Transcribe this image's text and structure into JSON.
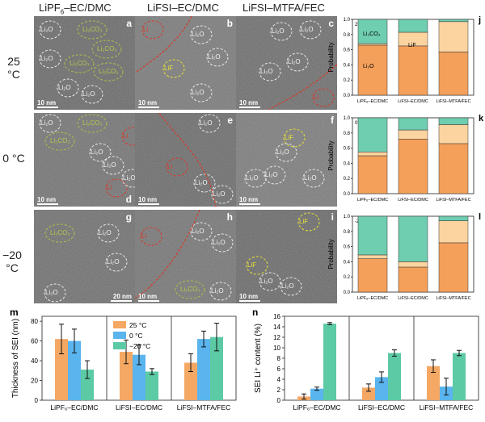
{
  "figure": {
    "column_titles": [
      "LiPF6–EC/DMC",
      "LiFSI–EC/DMC",
      "LiFSI–MTFA/FEC"
    ],
    "row_temps": [
      "25 °C",
      "0 °C",
      "−20 °C"
    ],
    "panels": [
      {
        "letter": "a",
        "scale": "10 nm",
        "labels": [
          {
            "t": "Li2O",
            "c": "w"
          },
          {
            "t": "Li2CO3",
            "c": "g"
          },
          {
            "t": "Li2CO3",
            "c": "g"
          },
          {
            "t": "Li2CO3",
            "c": "g"
          },
          {
            "t": "Li2CO3",
            "c": "g"
          },
          {
            "t": "Li2O",
            "c": "w"
          },
          {
            "t": "Li2O",
            "c": "w"
          },
          {
            "t": "Li2O",
            "c": "w"
          }
        ]
      },
      {
        "letter": "b",
        "scale": "10 nm",
        "labels": [
          {
            "t": "Li",
            "c": "r"
          },
          {
            "t": "Li2O",
            "c": "w"
          },
          {
            "t": "Li2O",
            "c": "w"
          },
          {
            "t": "LiF",
            "c": "y"
          },
          {
            "t": "Li2O",
            "c": "w"
          }
        ]
      },
      {
        "letter": "c",
        "scale": "10 nm",
        "labels": [
          {
            "t": "Li2O",
            "c": "w"
          },
          {
            "t": "Li2O",
            "c": "w"
          },
          {
            "t": "Li2O",
            "c": "w"
          },
          {
            "t": "Li2O",
            "c": "w"
          },
          {
            "t": "Li",
            "c": "r"
          }
        ]
      },
      {
        "letter": "d",
        "scale": "10 nm",
        "labels": [
          {
            "t": "Li2O",
            "c": "w"
          },
          {
            "t": "Li2CO3",
            "c": "g"
          },
          {
            "t": "Li",
            "c": "r"
          },
          {
            "t": "Li2CO3",
            "c": "g"
          },
          {
            "t": "Li2O",
            "c": "w"
          },
          {
            "t": "Li",
            "c": "r"
          },
          {
            "t": "Li2O",
            "c": "w"
          },
          {
            "t": "Li2O",
            "c": "w"
          }
        ]
      },
      {
        "letter": "e",
        "scale": "10 nm",
        "labels": [
          {
            "t": "Li2O",
            "c": "w"
          },
          {
            "t": "Li",
            "c": "r"
          },
          {
            "t": "Li2O",
            "c": "w"
          },
          {
            "t": "Li2O",
            "c": "w"
          }
        ]
      },
      {
        "letter": "f",
        "scale": "10 nm",
        "labels": [
          {
            "t": "LiF",
            "c": "y"
          },
          {
            "t": "Li2O",
            "c": "w"
          },
          {
            "t": "Li2O",
            "c": "w"
          },
          {
            "t": "Li2O",
            "c": "w"
          },
          {
            "t": "Li2O",
            "c": "w"
          }
        ]
      },
      {
        "letter": "g",
        "scale": "20 nm",
        "labels": [
          {
            "t": "Li2CO3",
            "c": "g"
          },
          {
            "t": "Li2O",
            "c": "w"
          },
          {
            "t": "Li2O",
            "c": "w"
          },
          {
            "t": "Li2O",
            "c": "w"
          }
        ]
      },
      {
        "letter": "h",
        "scale": "10 nm",
        "labels": [
          {
            "t": "Li",
            "c": "r"
          },
          {
            "t": "Li2O",
            "c": "w"
          },
          {
            "t": "Li2O",
            "c": "w"
          },
          {
            "t": "Li2CO3",
            "c": "g"
          },
          {
            "t": "Li2O",
            "c": "w"
          }
        ]
      },
      {
        "letter": "i",
        "scale": "10 nm",
        "labels": [
          {
            "t": "LiF",
            "c": "y"
          },
          {
            "t": "LiF",
            "c": "y"
          },
          {
            "t": "Li2O",
            "c": "w"
          },
          {
            "t": "Li2O",
            "c": "w"
          }
        ]
      }
    ],
    "colors": {
      "Li2O": "#f4a05a",
      "LiF": "#fcd4a0",
      "Li2CO3": "#6fcdb0",
      "c25": "#f4a864",
      "c0": "#5ab4ee",
      "cm20": "#5ccaa4"
    }
  },
  "chart_data": [
    {
      "type": "bar",
      "panel": "j",
      "temp_label": "25 °C",
      "ylabel": "Probability",
      "ylim": [
        0,
        1.0
      ],
      "yticks": [
        "0.0",
        "0.2",
        "0.4",
        "0.6",
        "0.8",
        "1.0"
      ],
      "categories": [
        "LiPF6–EC/DMC",
        "LiFSI–EC/DMC",
        "LiFSI–MTFA/FEC"
      ],
      "series": [
        {
          "name": "Li2O",
          "values": [
            0.66,
            0.65,
            0.57
          ]
        },
        {
          "name": "LiF",
          "values": [
            0.02,
            0.18,
            0.4
          ]
        },
        {
          "name": "Li2CO3",
          "values": [
            0.32,
            0.17,
            0.03
          ]
        }
      ],
      "annotations": [
        "Li2CO3",
        "LiF",
        "Li2O"
      ]
    },
    {
      "type": "bar",
      "panel": "k",
      "temp_label": "0°C",
      "ylabel": "Probability",
      "ylim": [
        0,
        1.0
      ],
      "yticks": [
        "0.0",
        "0.2",
        "0.4",
        "0.6",
        "0.8",
        "1.0"
      ],
      "categories": [
        "LiPF6–EC/DMC",
        "LiFSI–EC/DMC",
        "LiFSI–MTFA/FEC"
      ],
      "series": [
        {
          "name": "Li2O",
          "values": [
            0.5,
            0.72,
            0.66
          ]
        },
        {
          "name": "LiF",
          "values": [
            0.05,
            0.12,
            0.25
          ]
        },
        {
          "name": "Li2CO3",
          "values": [
            0.45,
            0.16,
            0.09
          ]
        }
      ]
    },
    {
      "type": "bar",
      "panel": "l",
      "temp_label": "-20°C",
      "ylabel": "Probability",
      "ylim": [
        0,
        1.0
      ],
      "yticks": [
        "0.0",
        "0.2",
        "0.4",
        "0.6",
        "0.8",
        "1.0"
      ],
      "categories": [
        "LiPF6–EC/DMC",
        "LiFSI–EC/DMC",
        "LiFSI–MTFA/FEC"
      ],
      "series": [
        {
          "name": "Li2O",
          "values": [
            0.44,
            0.33,
            0.65
          ]
        },
        {
          "name": "LiF",
          "values": [
            0.05,
            0.07,
            0.29
          ]
        },
        {
          "name": "Li2CO3",
          "values": [
            0.51,
            0.6,
            0.06
          ]
        }
      ]
    },
    {
      "type": "bar",
      "panel": "m",
      "ylabel": "Thickness of SEI (nm)",
      "ylim": [
        0,
        85
      ],
      "yticks": [
        "0",
        "20",
        "40",
        "60",
        "80"
      ],
      "categories": [
        "LiPF6–EC/DMC",
        "LiFSI–EC/DMC",
        "LiFSI–MTFA/FEC"
      ],
      "series": [
        {
          "name": "25 °C",
          "values": [
            62,
            49,
            38
          ],
          "errors": [
            15,
            12,
            9
          ]
        },
        {
          "name": "0 °C",
          "values": [
            60,
            46,
            62
          ],
          "errors": [
            12,
            10,
            8
          ]
        },
        {
          "name": "−20 °C",
          "values": [
            31,
            29,
            64
          ],
          "errors": [
            9,
            3,
            14
          ]
        }
      ]
    },
    {
      "type": "bar",
      "panel": "n",
      "ylabel": "SEI Li⁺ content (%)",
      "ylim": [
        0,
        16
      ],
      "yticks": [
        "0",
        "2",
        "4",
        "6",
        "8",
        "10",
        "12",
        "14",
        "16"
      ],
      "categories": [
        "LiPF6–EC/DMC",
        "LiFSI–EC/DMC",
        "LiFSI–MTFA/FEC"
      ],
      "series": [
        {
          "name": "25 °C",
          "values": [
            0.7,
            2.4,
            6.5
          ],
          "errors": [
            0.5,
            0.7,
            1.2
          ]
        },
        {
          "name": "0 °C",
          "values": [
            2.2,
            4.4,
            2.6
          ],
          "errors": [
            0.3,
            1.0,
            1.6
          ]
        },
        {
          "name": "−20 °C",
          "values": [
            14.6,
            9.0,
            9.0
          ],
          "errors": [
            0.2,
            0.6,
            0.5
          ]
        }
      ]
    }
  ]
}
